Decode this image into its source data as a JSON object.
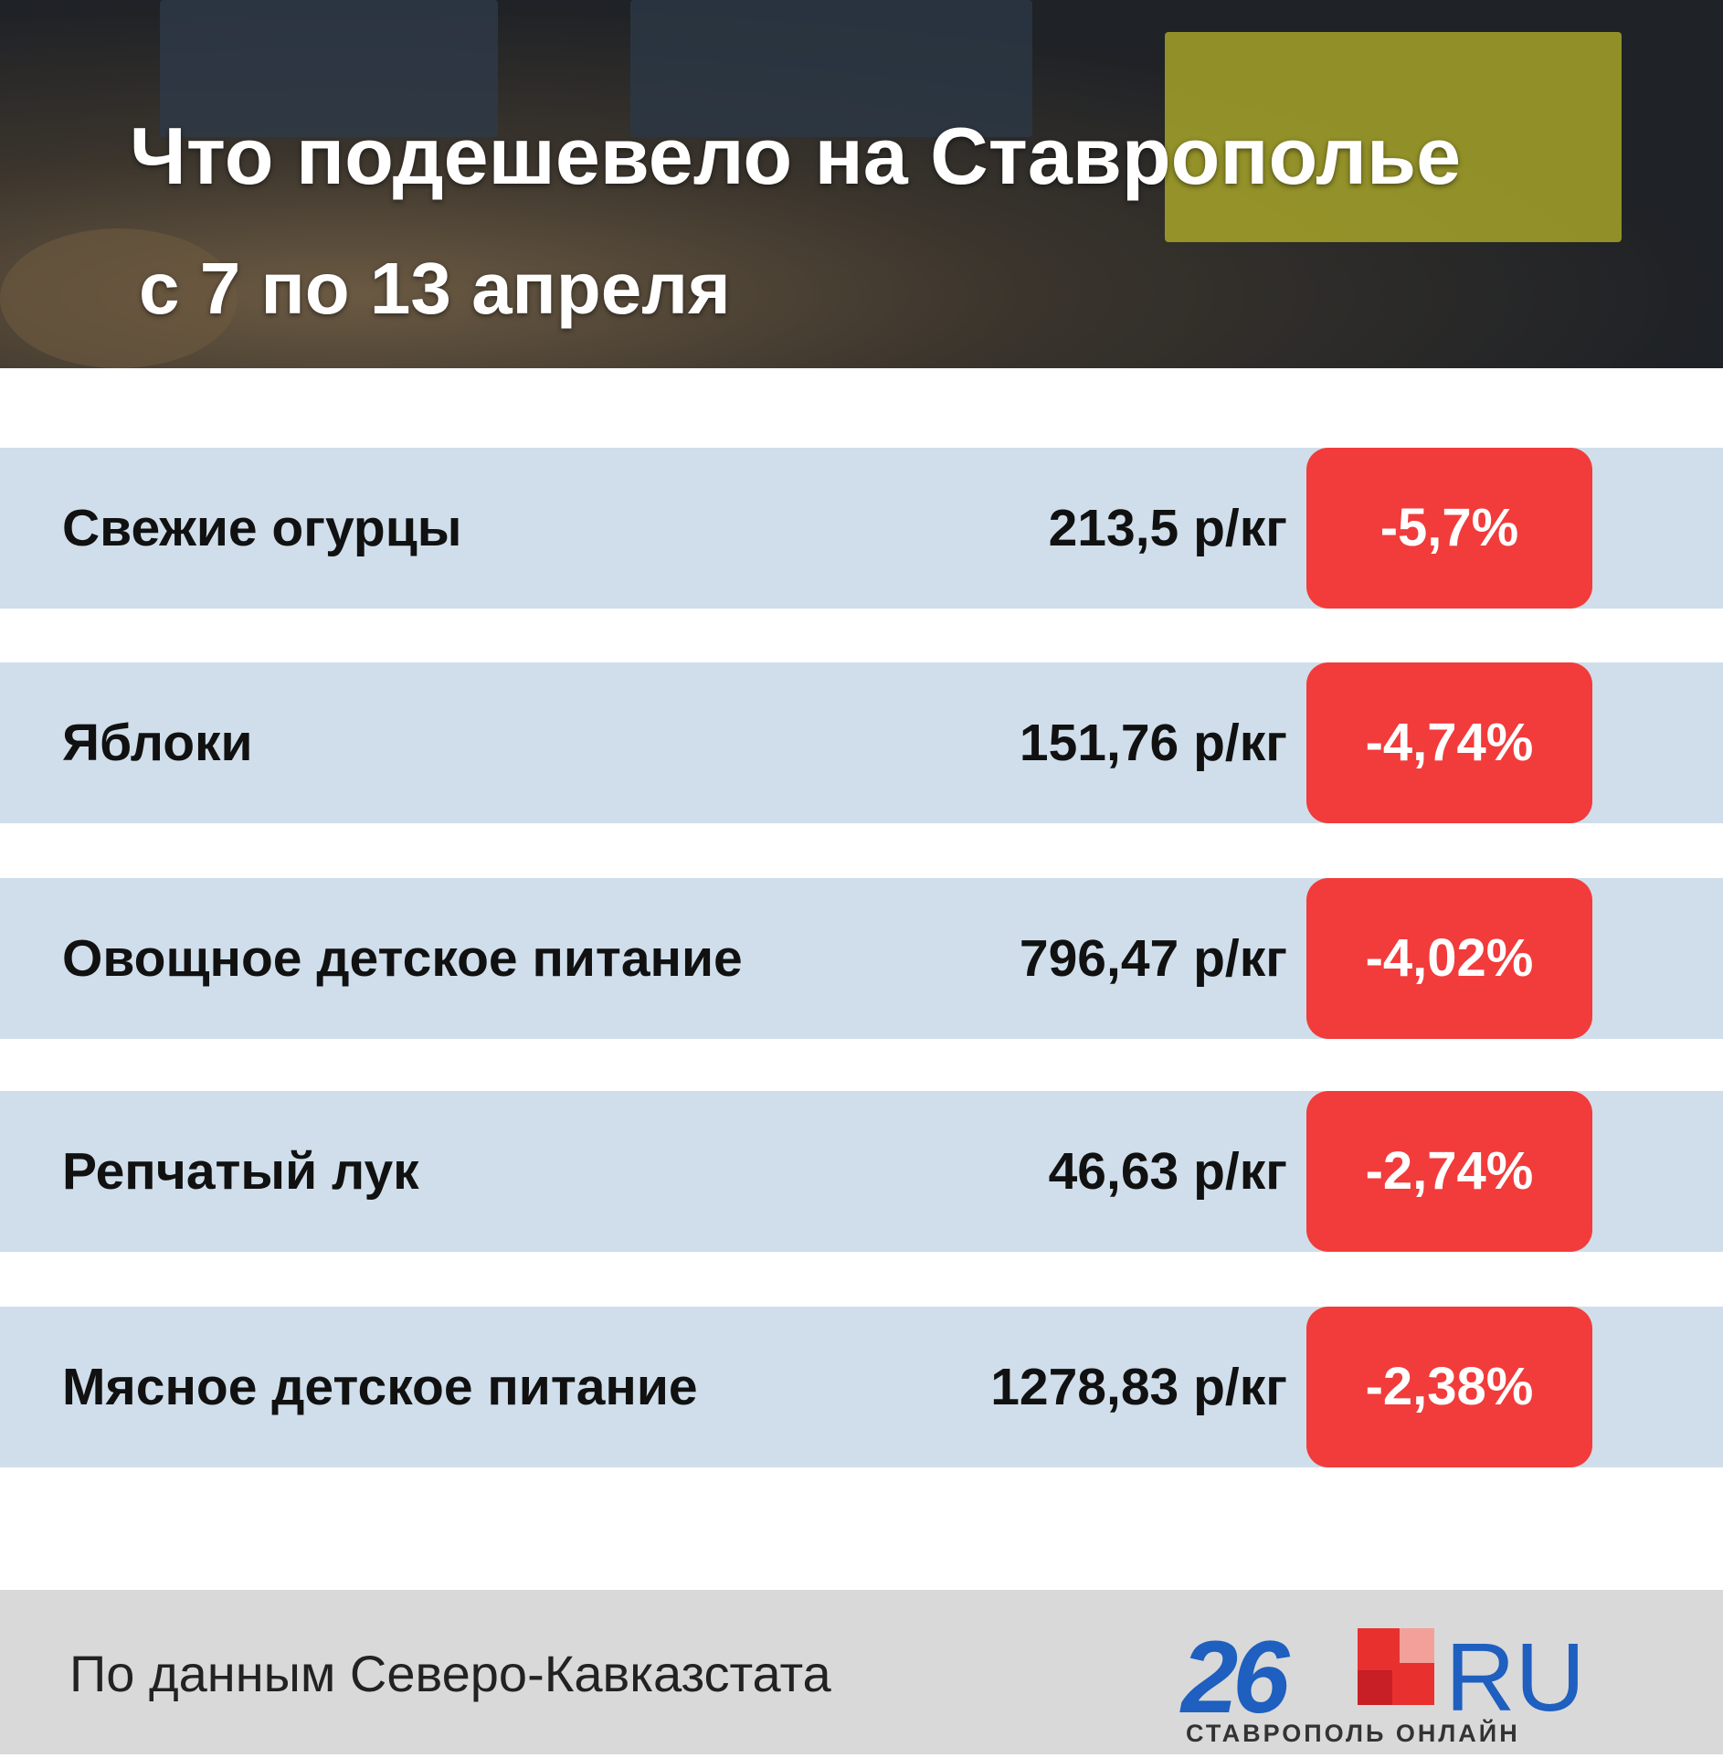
{
  "header": {
    "title": "Что подешевело на Ставрополье",
    "subtitle": "с 7 по 13 апреля"
  },
  "rows": [
    {
      "name": "Свежие огурцы",
      "price": "213,5 р/кг",
      "change": "-5,7%"
    },
    {
      "name": "Яблоки",
      "price": "151,76 р/кг",
      "change": "-4,74%"
    },
    {
      "name": "Овощное детское питание",
      "price": "796,47 р/кг",
      "change": "-4,02%"
    },
    {
      "name": "Репчатый лук",
      "price": "46,63 р/кг",
      "change": "-2,74%"
    },
    {
      "name": "Мясное детское питание",
      "price": "1278,83 р/кг",
      "change": "-2,38%"
    }
  ],
  "footer": {
    "source": "По данным Северо-Кавказстата"
  },
  "logo": {
    "number": "26",
    "suffix": "RU",
    "tagline": "СТАВРОПОЛЬ ОНЛАЙН"
  }
}
